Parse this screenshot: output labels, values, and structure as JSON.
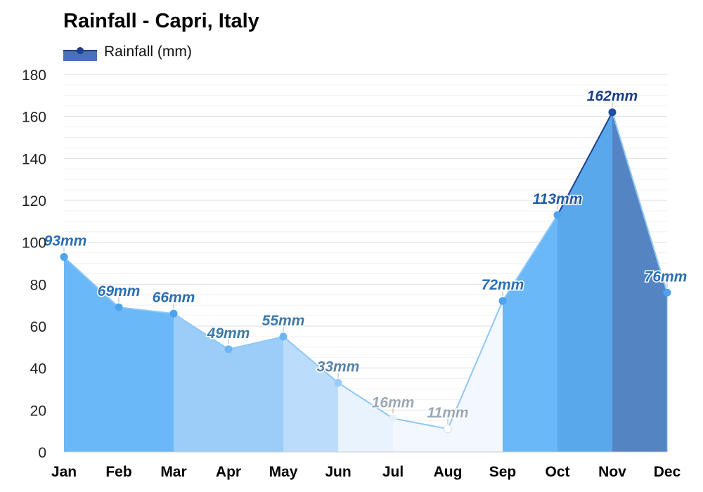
{
  "chart_data": {
    "type": "area",
    "title": "Rainfall - Capri, Italy",
    "categories": [
      "Jan",
      "Feb",
      "Mar",
      "Apr",
      "May",
      "Jun",
      "Jul",
      "Aug",
      "Sep",
      "Oct",
      "Nov",
      "Dec"
    ],
    "series": [
      {
        "name": "Rainfall (mm)",
        "values": [
          93,
          69,
          66,
          49,
          55,
          33,
          16,
          11,
          72,
          113,
          162,
          76
        ],
        "data_labels": [
          "93mm",
          "69mm",
          "66mm",
          "49mm",
          "55mm",
          "33mm",
          "16mm",
          "11mm",
          "72mm",
          "113mm",
          "162mm",
          "76mm"
        ]
      }
    ],
    "ylim": [
      0,
      180
    ],
    "yticks": [
      0,
      20,
      40,
      60,
      80,
      100,
      120,
      140,
      160,
      180
    ],
    "grid": true,
    "legend": "top-left",
    "colors": {
      "fills": [
        "#6ab8f7",
        "#6ab8f7",
        "#9ccdf9",
        "#9ccdf9",
        "#bcdcfb",
        "#e8f3fe",
        "#f3f8fe",
        "#f3f8fe",
        "#6ab8f7",
        "#5aa8ec",
        "#5484c2",
        "#78bdf8"
      ],
      "points": [
        "#4fa3ee",
        "#4fa3ee",
        "#4fa3ee",
        "#6db5f4",
        "#6db5f4",
        "#9ccdf9",
        "#e6effa",
        "#ffffff",
        "#4fa3ee",
        "#4fa3ee",
        "#1f4fa3",
        "#4fa3ee"
      ],
      "labels": [
        "#2a6fb4",
        "#2a6fb4",
        "#2a6fb4",
        "#3d7aa8",
        "#3d7aa8",
        "#5a82a8",
        "#9aa8b6",
        "#9aa8b6",
        "#2a6fb4",
        "#1f5aa6",
        "#1a3f8a",
        "#2a6fb4"
      ],
      "line_light": "#8ec7f7",
      "line_dark": "#1f3f8a",
      "legend_fill": "#4a70b8",
      "legend_line": "#1f3f8a",
      "grid": "#e6e6e6"
    }
  }
}
